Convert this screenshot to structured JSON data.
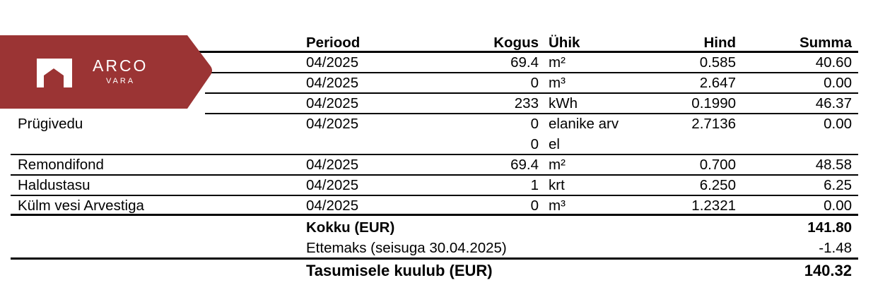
{
  "logo": {
    "name": "ARCO",
    "sub": "VARA",
    "color": "#9b3434"
  },
  "header": {
    "name": "",
    "period": "Periood",
    "qty": "Kogus",
    "unit": "Ühik",
    "price": "Hind",
    "sum": "Summa"
  },
  "rows": [
    {
      "name": "",
      "period": "04/2025",
      "qty": "69.4",
      "unit": "m²",
      "price": "0.585",
      "sum": "40.60"
    },
    {
      "name": "",
      "period": "04/2025",
      "qty": "0",
      "unit": "m³",
      "price": "2.647",
      "sum": "0.00"
    },
    {
      "name": "",
      "period": "04/2025",
      "qty": "233",
      "unit": "kWh",
      "price": "0.1990",
      "sum": "46.37"
    },
    {
      "name": "Prügivedu",
      "period": "04/2025",
      "qty": "0",
      "unit": "elanike arv",
      "price": "2.7136",
      "sum": "0.00"
    },
    {
      "name": "",
      "period": "",
      "qty": "0",
      "unit": "el",
      "price": "",
      "sum": ""
    },
    {
      "name": "Remondifond",
      "period": "04/2025",
      "qty": "69.4",
      "unit": "m²",
      "price": "0.700",
      "sum": "48.58"
    },
    {
      "name": "Haldustasu",
      "period": "04/2025",
      "qty": "1",
      "unit": "krt",
      "price": "6.250",
      "sum": "6.25"
    },
    {
      "name": "Külm vesi Arvestiga",
      "period": "04/2025",
      "qty": "0",
      "unit": "m³",
      "price": "1.2321",
      "sum": "0.00"
    }
  ],
  "totals": {
    "total_label": "Kokku (EUR)",
    "total_value": "141.80",
    "prepay_label": "Ettemaks (seisuga 30.04.2025)",
    "prepay_value": "-1.48",
    "due_label": "Tasumisele kuulub (EUR)",
    "due_value": "140.32"
  }
}
